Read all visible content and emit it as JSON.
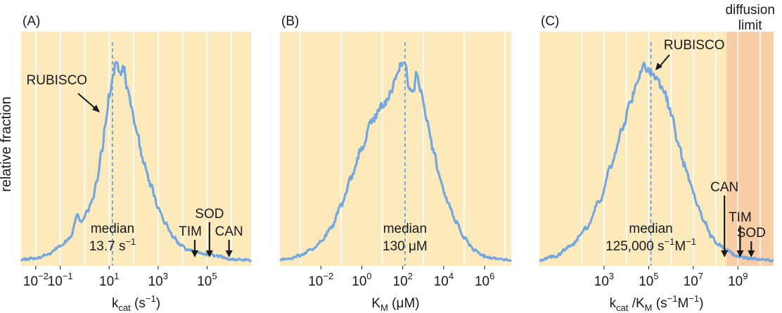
{
  "ylabel": "relative fraction",
  "colors": {
    "panel_bg": "#fce9bc",
    "diffusion_bg": "#f9cda6",
    "curve": "#74a7dd",
    "grid": "#ffffff",
    "arrow": "#1a1a1a"
  },
  "chart_data": [
    {
      "id": "A",
      "type": "area",
      "panel_label": "(A)",
      "xlabel_main": "k",
      "xlabel_sub": "cat",
      "xlabel_rest": " (s",
      "xlabel_sup": "−1",
      "xlabel_end": ")",
      "x_scale": "log10",
      "xlim_log10": [
        -2.6,
        6.8
      ],
      "ticks": [
        {
          "exp": -2,
          "base": "10",
          "sup": "−2"
        },
        {
          "exp": -1,
          "base": "10",
          "sup": "−1"
        },
        {
          "exp": 1,
          "base": "10",
          "sup": "1"
        },
        {
          "exp": 3,
          "base": "10",
          "sup": "3"
        },
        {
          "exp": 5,
          "base": "10",
          "sup": "5"
        }
      ],
      "grid_log10": [
        -2,
        -1,
        0,
        1,
        2,
        3,
        4,
        5,
        6
      ],
      "median": {
        "value": 13.7,
        "log10": 1.137,
        "line1": "median",
        "line2": "13.7 s",
        "line2_sup": "−1"
      },
      "curve": [
        [
          -2.6,
          0.015
        ],
        [
          -2.0,
          0.02
        ],
        [
          -1.5,
          0.04
        ],
        [
          -1.0,
          0.08
        ],
        [
          -0.6,
          0.12
        ],
        [
          -0.3,
          0.23
        ],
        [
          -0.1,
          0.2
        ],
        [
          0.1,
          0.25
        ],
        [
          0.3,
          0.3
        ],
        [
          0.5,
          0.4
        ],
        [
          0.7,
          0.55
        ],
        [
          0.85,
          0.68
        ],
        [
          1.0,
          0.82
        ],
        [
          1.15,
          0.92
        ],
        [
          1.3,
          1.0
        ],
        [
          1.45,
          0.93
        ],
        [
          1.6,
          0.96
        ],
        [
          1.75,
          0.85
        ],
        [
          1.9,
          0.78
        ],
        [
          2.1,
          0.66
        ],
        [
          2.4,
          0.5
        ],
        [
          2.7,
          0.38
        ],
        [
          3.0,
          0.27
        ],
        [
          3.3,
          0.19
        ],
        [
          3.6,
          0.13
        ],
        [
          3.9,
          0.09
        ],
        [
          4.2,
          0.06
        ],
        [
          4.6,
          0.05
        ],
        [
          5.0,
          0.04
        ],
        [
          5.5,
          0.03
        ],
        [
          6.0,
          0.015
        ],
        [
          6.8,
          0.01
        ]
      ],
      "annotations": [
        {
          "label": "RUBISCO",
          "log10": 0.45,
          "align": "right"
        },
        {
          "label": "TIM",
          "log10": 4.5,
          "align": "left"
        },
        {
          "label": "SOD",
          "log10": 5.1,
          "align": "center"
        },
        {
          "label": "CAN",
          "log10": 5.9,
          "align": "center"
        }
      ],
      "diffusion_region_log10": null,
      "diffusion_label": null
    },
    {
      "id": "B",
      "type": "area",
      "panel_label": "(B)",
      "xlabel_main": "K",
      "xlabel_sub": "M",
      "xlabel_rest": " (μM)",
      "xlabel_sup": "",
      "xlabel_end": "",
      "x_scale": "log10",
      "xlim_log10": [
        -4.0,
        7.3
      ],
      "ticks": [
        {
          "exp": -2,
          "base": "10",
          "sup": "−2"
        },
        {
          "exp": 0,
          "base": "10",
          "sup": "0"
        },
        {
          "exp": 2,
          "base": "10",
          "sup": "2"
        },
        {
          "exp": 4,
          "base": "10",
          "sup": "4"
        },
        {
          "exp": 6,
          "base": "10",
          "sup": "6"
        }
      ],
      "grid_log10": [
        -3,
        -1,
        1,
        3,
        5,
        7
      ],
      "median": {
        "value": 130,
        "log10": 2.11,
        "line1": "median",
        "line2": "130 μM",
        "line2_sup": ""
      },
      "curve": [
        [
          -4.0,
          0.015
        ],
        [
          -3.5,
          0.02
        ],
        [
          -3.0,
          0.035
        ],
        [
          -2.5,
          0.06
        ],
        [
          -2.0,
          0.1
        ],
        [
          -1.5,
          0.17
        ],
        [
          -1.0,
          0.28
        ],
        [
          -0.5,
          0.42
        ],
        [
          0.0,
          0.56
        ],
        [
          0.5,
          0.7
        ],
        [
          1.0,
          0.77
        ],
        [
          1.4,
          0.83
        ],
        [
          1.7,
          0.93
        ],
        [
          1.9,
          0.98
        ],
        [
          2.1,
          1.0
        ],
        [
          2.3,
          0.86
        ],
        [
          2.5,
          0.83
        ],
        [
          2.7,
          0.94
        ],
        [
          2.9,
          0.84
        ],
        [
          3.2,
          0.7
        ],
        [
          3.5,
          0.55
        ],
        [
          3.8,
          0.42
        ],
        [
          4.2,
          0.3
        ],
        [
          4.6,
          0.2
        ],
        [
          5.0,
          0.12
        ],
        [
          5.5,
          0.06
        ],
        [
          6.0,
          0.03
        ],
        [
          6.5,
          0.02
        ],
        [
          7.3,
          0.01
        ]
      ],
      "annotations": [],
      "diffusion_region_log10": null,
      "diffusion_label": null
    },
    {
      "id": "C",
      "type": "area",
      "panel_label": "(C)",
      "xlabel_main": "k",
      "xlabel_sub": "cat",
      "xlabel_rest": " /K",
      "xlabel_sub2": "M",
      "xlabel_rest2": " (s",
      "xlabel_sup": "−1",
      "xlabel_mid": "M",
      "xlabel_sup2": "−1",
      "xlabel_end": ")",
      "x_scale": "log10",
      "xlim_log10": [
        0.1,
        10.6
      ],
      "ticks": [
        {
          "exp": 3,
          "base": "10",
          "sup": "3"
        },
        {
          "exp": 5,
          "base": "10",
          "sup": "5"
        },
        {
          "exp": 7,
          "base": "10",
          "sup": "7"
        },
        {
          "exp": 9,
          "base": "10",
          "sup": "9"
        }
      ],
      "grid_log10": [
        2,
        3,
        4,
        5,
        6,
        7,
        8,
        9,
        10
      ],
      "median": {
        "value": 125000,
        "log10": 5.1,
        "line1": "median",
        "line2": "125,000 s",
        "line2_sup": "−1",
        "line2_mid": "M",
        "line2_sup2": "−1"
      },
      "curve": [
        [
          0.1,
          0.01
        ],
        [
          0.8,
          0.03
        ],
        [
          1.5,
          0.08
        ],
        [
          2.2,
          0.17
        ],
        [
          2.8,
          0.3
        ],
        [
          3.3,
          0.47
        ],
        [
          3.8,
          0.65
        ],
        [
          4.2,
          0.8
        ],
        [
          4.5,
          0.9
        ],
        [
          4.8,
          0.97
        ],
        [
          5.1,
          0.94
        ],
        [
          5.4,
          0.9
        ],
        [
          5.7,
          0.84
        ],
        [
          6.0,
          0.74
        ],
        [
          6.3,
          0.6
        ],
        [
          6.6,
          0.48
        ],
        [
          6.9,
          0.38
        ],
        [
          7.2,
          0.28
        ],
        [
          7.5,
          0.2
        ],
        [
          7.8,
          0.13
        ],
        [
          8.1,
          0.09
        ],
        [
          8.5,
          0.06
        ],
        [
          9.0,
          0.03
        ],
        [
          9.5,
          0.02
        ],
        [
          10.6,
          0.01
        ]
      ],
      "annotations": [
        {
          "label": "RUBISCO",
          "log10": 5.3,
          "align": "left"
        },
        {
          "label": "CAN",
          "log10": 8.4,
          "align": "center"
        },
        {
          "label": "TIM",
          "log10": 9.1,
          "align": "center"
        },
        {
          "label": "SOD",
          "log10": 9.6,
          "align": "center"
        }
      ],
      "diffusion_region_log10": [
        8.5,
        10.6
      ],
      "diffusion_label": [
        "diffusion",
        "limit"
      ]
    }
  ]
}
